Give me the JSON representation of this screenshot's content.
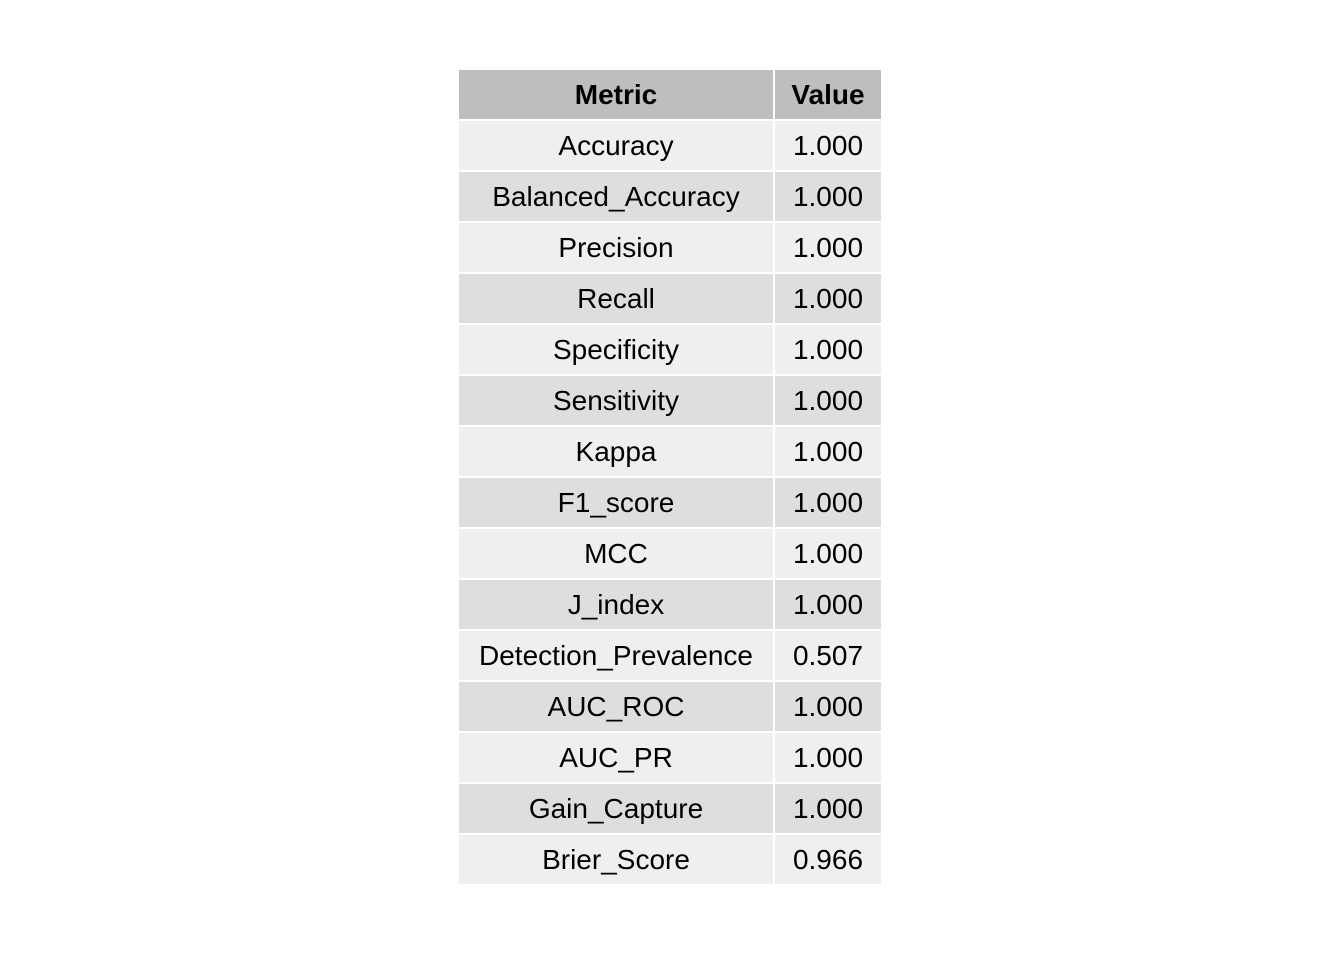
{
  "chart_data": {
    "type": "table",
    "columns": [
      "Metric",
      "Value"
    ],
    "rows": [
      [
        "Accuracy",
        "1.000"
      ],
      [
        "Balanced_Accuracy",
        "1.000"
      ],
      [
        "Precision",
        "1.000"
      ],
      [
        "Recall",
        "1.000"
      ],
      [
        "Specificity",
        "1.000"
      ],
      [
        "Sensitivity",
        "1.000"
      ],
      [
        "Kappa",
        "1.000"
      ],
      [
        "F1_score",
        "1.000"
      ],
      [
        "MCC",
        "1.000"
      ],
      [
        "J_index",
        "1.000"
      ],
      [
        "Detection_Prevalence",
        "0.507"
      ],
      [
        "AUC_ROC",
        "1.000"
      ],
      [
        "AUC_PR",
        "1.000"
      ],
      [
        "Gain_Capture",
        "1.000"
      ],
      [
        "Brier_Score",
        "0.966"
      ]
    ],
    "colors": {
      "header_bg": "#bebebe",
      "row_light": "#efefef",
      "row_dark": "#dedede",
      "text": "#000000"
    }
  }
}
